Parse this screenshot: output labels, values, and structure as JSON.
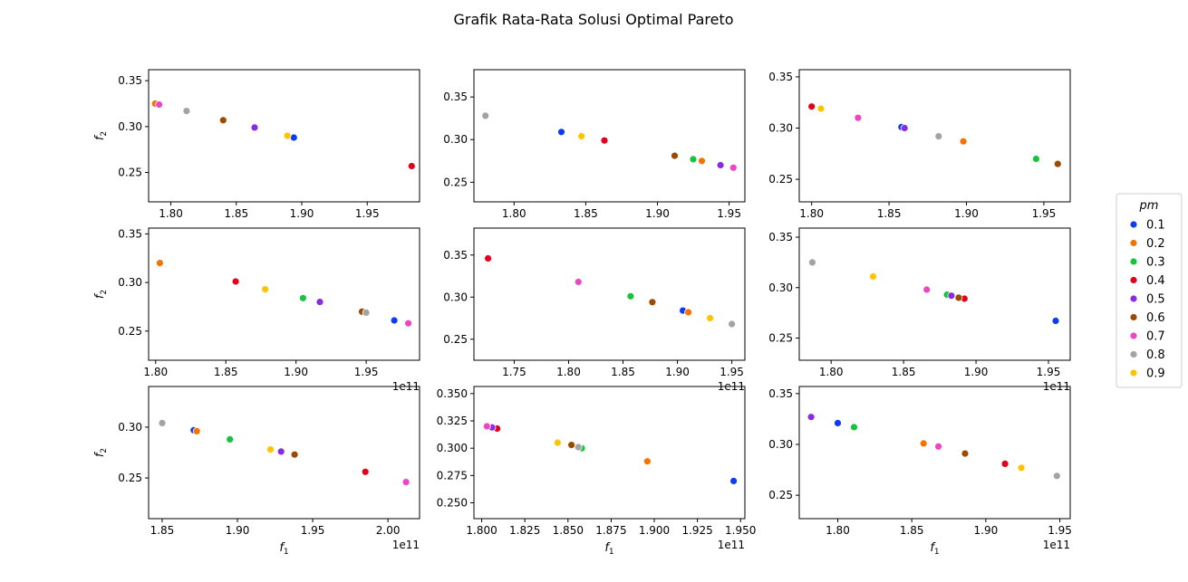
{
  "figure": {
    "title": "Grafik Rata-Rata Solusi Optimal Pareto"
  },
  "legend": {
    "title": "pm",
    "entries": [
      {
        "label": "0.1",
        "color": "#0d3cf2"
      },
      {
        "label": "0.2",
        "color": "#f57300"
      },
      {
        "label": "0.3",
        "color": "#17c43d"
      },
      {
        "label": "0.4",
        "color": "#e3001a"
      },
      {
        "label": "0.5",
        "color": "#8a2be2"
      },
      {
        "label": "0.6",
        "color": "#9c4a00"
      },
      {
        "label": "0.7",
        "color": "#ec46c3"
      },
      {
        "label": "0.8",
        "color": "#a3a3a3"
      },
      {
        "label": "0.9",
        "color": "#ffc400"
      }
    ]
  },
  "chart_data": [
    {
      "type": "scatter",
      "xlabel": "",
      "ylabel": "f2",
      "x_offset_text": "",
      "xlim": [
        1.783,
        1.99
      ],
      "ylim": [
        0.218,
        0.362
      ],
      "xticks": [
        1.8,
        1.85,
        1.9,
        1.95
      ],
      "xtick_labels": [
        "1.80",
        "1.85",
        "1.90",
        "1.95"
      ],
      "yticks": [
        0.25,
        0.3,
        0.35
      ],
      "ytick_labels": [
        "0.25",
        "0.30",
        "0.35"
      ],
      "points": [
        {
          "pm": "0.1",
          "x": 1.894,
          "y": 0.288
        },
        {
          "pm": "0.2",
          "x": 1.788,
          "y": 0.325
        },
        {
          "pm": "0.4",
          "x": 1.984,
          "y": 0.257
        },
        {
          "pm": "0.5",
          "x": 1.864,
          "y": 0.299
        },
        {
          "pm": "0.6",
          "x": 1.84,
          "y": 0.307
        },
        {
          "pm": "0.7",
          "x": 1.791,
          "y": 0.324
        },
        {
          "pm": "0.8",
          "x": 1.812,
          "y": 0.317
        },
        {
          "pm": "0.9",
          "x": 1.889,
          "y": 0.29
        }
      ]
    },
    {
      "type": "scatter",
      "xlabel": "",
      "ylabel": "",
      "x_offset_text": "",
      "xlim": [
        1.772,
        1.961
      ],
      "ylim": [
        0.227,
        0.382
      ],
      "xticks": [
        1.8,
        1.85,
        1.9,
        1.95
      ],
      "xtick_labels": [
        "1.80",
        "1.85",
        "1.90",
        "1.95"
      ],
      "yticks": [
        0.25,
        0.3,
        0.35
      ],
      "ytick_labels": [
        "0.25",
        "0.30",
        "0.35"
      ],
      "points": [
        {
          "pm": "0.1",
          "x": 1.833,
          "y": 0.309
        },
        {
          "pm": "0.2",
          "x": 1.931,
          "y": 0.275
        },
        {
          "pm": "0.3",
          "x": 1.925,
          "y": 0.277
        },
        {
          "pm": "0.4",
          "x": 1.863,
          "y": 0.299
        },
        {
          "pm": "0.5",
          "x": 1.944,
          "y": 0.27
        },
        {
          "pm": "0.6",
          "x": 1.912,
          "y": 0.281
        },
        {
          "pm": "0.7",
          "x": 1.953,
          "y": 0.267
        },
        {
          "pm": "0.8",
          "x": 1.78,
          "y": 0.328
        },
        {
          "pm": "0.9",
          "x": 1.847,
          "y": 0.304
        }
      ]
    },
    {
      "type": "scatter",
      "xlabel": "",
      "ylabel": "",
      "x_offset_text": "",
      "xlim": [
        1.792,
        1.967
      ],
      "ylim": [
        0.228,
        0.357
      ],
      "xticks": [
        1.8,
        1.85,
        1.9,
        1.95
      ],
      "xtick_labels": [
        "1.80",
        "1.85",
        "1.90",
        "1.95"
      ],
      "yticks": [
        0.25,
        0.3,
        0.35
      ],
      "ytick_labels": [
        "0.25",
        "0.30",
        "0.35"
      ],
      "points": [
        {
          "pm": "0.1",
          "x": 1.858,
          "y": 0.301
        },
        {
          "pm": "0.2",
          "x": 1.898,
          "y": 0.287
        },
        {
          "pm": "0.3",
          "x": 1.945,
          "y": 0.27
        },
        {
          "pm": "0.4",
          "x": 1.8,
          "y": 0.321
        },
        {
          "pm": "0.5",
          "x": 1.86,
          "y": 0.3
        },
        {
          "pm": "0.6",
          "x": 1.959,
          "y": 0.265
        },
        {
          "pm": "0.7",
          "x": 1.83,
          "y": 0.31
        },
        {
          "pm": "0.8",
          "x": 1.882,
          "y": 0.292
        },
        {
          "pm": "0.9",
          "x": 1.806,
          "y": 0.319
        }
      ]
    },
    {
      "type": "scatter",
      "xlabel": "",
      "ylabel": "f2",
      "x_offset_text": "1e11",
      "xlim": [
        1.795,
        1.988
      ],
      "ylim": [
        0.22,
        0.356
      ],
      "xticks": [
        1.8,
        1.85,
        1.9,
        1.95
      ],
      "xtick_labels": [
        "1.80",
        "1.85",
        "1.90",
        "1.95"
      ],
      "yticks": [
        0.25,
        0.3,
        0.35
      ],
      "ytick_labels": [
        "0.25",
        "0.30",
        "0.35"
      ],
      "points": [
        {
          "pm": "0.1",
          "x": 1.97,
          "y": 0.261
        },
        {
          "pm": "0.2",
          "x": 1.803,
          "y": 0.32
        },
        {
          "pm": "0.3",
          "x": 1.905,
          "y": 0.284
        },
        {
          "pm": "0.4",
          "x": 1.857,
          "y": 0.301
        },
        {
          "pm": "0.5",
          "x": 1.917,
          "y": 0.28
        },
        {
          "pm": "0.6",
          "x": 1.947,
          "y": 0.27
        },
        {
          "pm": "0.7",
          "x": 1.98,
          "y": 0.258
        },
        {
          "pm": "0.8",
          "x": 1.95,
          "y": 0.269
        },
        {
          "pm": "0.9",
          "x": 1.878,
          "y": 0.293
        }
      ]
    },
    {
      "type": "scatter",
      "xlabel": "",
      "ylabel": "",
      "x_offset_text": "1e11",
      "xlim": [
        1.713,
        1.962
      ],
      "ylim": [
        0.225,
        0.382
      ],
      "xticks": [
        1.75,
        1.8,
        1.85,
        1.9,
        1.95
      ],
      "xtick_labels": [
        "1.75",
        "1.80",
        "1.85",
        "1.90",
        "1.95"
      ],
      "yticks": [
        0.25,
        0.3,
        0.35
      ],
      "ytick_labels": [
        "0.25",
        "0.30",
        "0.35"
      ],
      "points": [
        {
          "pm": "0.1",
          "x": 1.905,
          "y": 0.284
        },
        {
          "pm": "0.2",
          "x": 1.91,
          "y": 0.282
        },
        {
          "pm": "0.3",
          "x": 1.857,
          "y": 0.301
        },
        {
          "pm": "0.4",
          "x": 1.726,
          "y": 0.346
        },
        {
          "pm": "0.6",
          "x": 1.877,
          "y": 0.294
        },
        {
          "pm": "0.7",
          "x": 1.809,
          "y": 0.318
        },
        {
          "pm": "0.8",
          "x": 1.95,
          "y": 0.268
        },
        {
          "pm": "0.9",
          "x": 1.93,
          "y": 0.275
        }
      ]
    },
    {
      "type": "scatter",
      "xlabel": "",
      "ylabel": "",
      "x_offset_text": "1e11",
      "xlim": [
        1.778,
        1.965
      ],
      "ylim": [
        0.228,
        0.359
      ],
      "xticks": [
        1.8,
        1.85,
        1.9,
        1.95
      ],
      "xtick_labels": [
        "1.80",
        "1.85",
        "1.90",
        "1.95"
      ],
      "yticks": [
        0.25,
        0.3,
        0.35
      ],
      "ytick_labels": [
        "0.25",
        "0.30",
        "0.35"
      ],
      "points": [
        {
          "pm": "0.1",
          "x": 1.955,
          "y": 0.267
        },
        {
          "pm": "0.3",
          "x": 1.88,
          "y": 0.293
        },
        {
          "pm": "0.4",
          "x": 1.892,
          "y": 0.289
        },
        {
          "pm": "0.5",
          "x": 1.883,
          "y": 0.292
        },
        {
          "pm": "0.6",
          "x": 1.888,
          "y": 0.29
        },
        {
          "pm": "0.7",
          "x": 1.866,
          "y": 0.298
        },
        {
          "pm": "0.8",
          "x": 1.787,
          "y": 0.325
        },
        {
          "pm": "0.9",
          "x": 1.829,
          "y": 0.311
        }
      ]
    },
    {
      "type": "scatter",
      "xlabel": "f1",
      "ylabel": "f2",
      "x_offset_text": "1e11",
      "xlim": [
        1.841,
        2.021
      ],
      "ylim": [
        0.21,
        0.34
      ],
      "xticks": [
        1.85,
        1.9,
        1.95,
        2.0
      ],
      "xtick_labels": [
        "1.85",
        "1.90",
        "1.95",
        "2.00"
      ],
      "yticks": [
        0.25,
        0.3
      ],
      "ytick_labels": [
        "0.25",
        "0.30"
      ],
      "points": [
        {
          "pm": "0.1",
          "x": 1.871,
          "y": 0.297
        },
        {
          "pm": "0.2",
          "x": 1.873,
          "y": 0.296
        },
        {
          "pm": "0.3",
          "x": 1.895,
          "y": 0.288
        },
        {
          "pm": "0.4",
          "x": 1.985,
          "y": 0.256
        },
        {
          "pm": "0.5",
          "x": 1.929,
          "y": 0.276
        },
        {
          "pm": "0.6",
          "x": 1.938,
          "y": 0.273
        },
        {
          "pm": "0.7",
          "x": 2.012,
          "y": 0.246
        },
        {
          "pm": "0.8",
          "x": 1.85,
          "y": 0.304
        },
        {
          "pm": "0.9",
          "x": 1.922,
          "y": 0.278
        }
      ]
    },
    {
      "type": "scatter",
      "xlabel": "f1",
      "ylabel": "",
      "x_offset_text": "1e11",
      "xlim": [
        1.7955,
        1.9525
      ],
      "ylim": [
        0.2355,
        0.3565
      ],
      "xticks": [
        1.8,
        1.825,
        1.85,
        1.875,
        1.9,
        1.925,
        1.95
      ],
      "xtick_labels": [
        "1.800",
        "1.825",
        "1.850",
        "1.875",
        "1.900",
        "1.925",
        "1.950"
      ],
      "yticks": [
        0.25,
        0.275,
        0.3,
        0.325,
        0.35
      ],
      "ytick_labels": [
        "0.250",
        "0.275",
        "0.300",
        "0.325",
        "0.350"
      ],
      "points": [
        {
          "pm": "0.1",
          "x": 1.946,
          "y": 0.27
        },
        {
          "pm": "0.2",
          "x": 1.896,
          "y": 0.288
        },
        {
          "pm": "0.3",
          "x": 1.858,
          "y": 0.3
        },
        {
          "pm": "0.4",
          "x": 1.809,
          "y": 0.318
        },
        {
          "pm": "0.5",
          "x": 1.806,
          "y": 0.319
        },
        {
          "pm": "0.6",
          "x": 1.852,
          "y": 0.303
        },
        {
          "pm": "0.7",
          "x": 1.803,
          "y": 0.32
        },
        {
          "pm": "0.8",
          "x": 1.856,
          "y": 0.301
        },
        {
          "pm": "0.9",
          "x": 1.844,
          "y": 0.305
        }
      ]
    },
    {
      "type": "scatter",
      "xlabel": "f1",
      "ylabel": "",
      "x_offset_text": "1e11",
      "xlim": [
        1.774,
        1.957
      ],
      "ylim": [
        0.227,
        0.357
      ],
      "xticks": [
        1.8,
        1.85,
        1.9,
        1.95
      ],
      "xtick_labels": [
        "1.80",
        "1.85",
        "1.90",
        "1.95"
      ],
      "yticks": [
        0.25,
        0.3,
        0.35
      ],
      "ytick_labels": [
        "0.25",
        "0.30",
        "0.35"
      ],
      "points": [
        {
          "pm": "0.1",
          "x": 1.8,
          "y": 0.321
        },
        {
          "pm": "0.2",
          "x": 1.858,
          "y": 0.301
        },
        {
          "pm": "0.3",
          "x": 1.811,
          "y": 0.317
        },
        {
          "pm": "0.4",
          "x": 1.913,
          "y": 0.281
        },
        {
          "pm": "0.5",
          "x": 1.782,
          "y": 0.327
        },
        {
          "pm": "0.6",
          "x": 1.886,
          "y": 0.291
        },
        {
          "pm": "0.7",
          "x": 1.868,
          "y": 0.298
        },
        {
          "pm": "0.8",
          "x": 1.948,
          "y": 0.269
        },
        {
          "pm": "0.9",
          "x": 1.924,
          "y": 0.277
        }
      ]
    }
  ]
}
